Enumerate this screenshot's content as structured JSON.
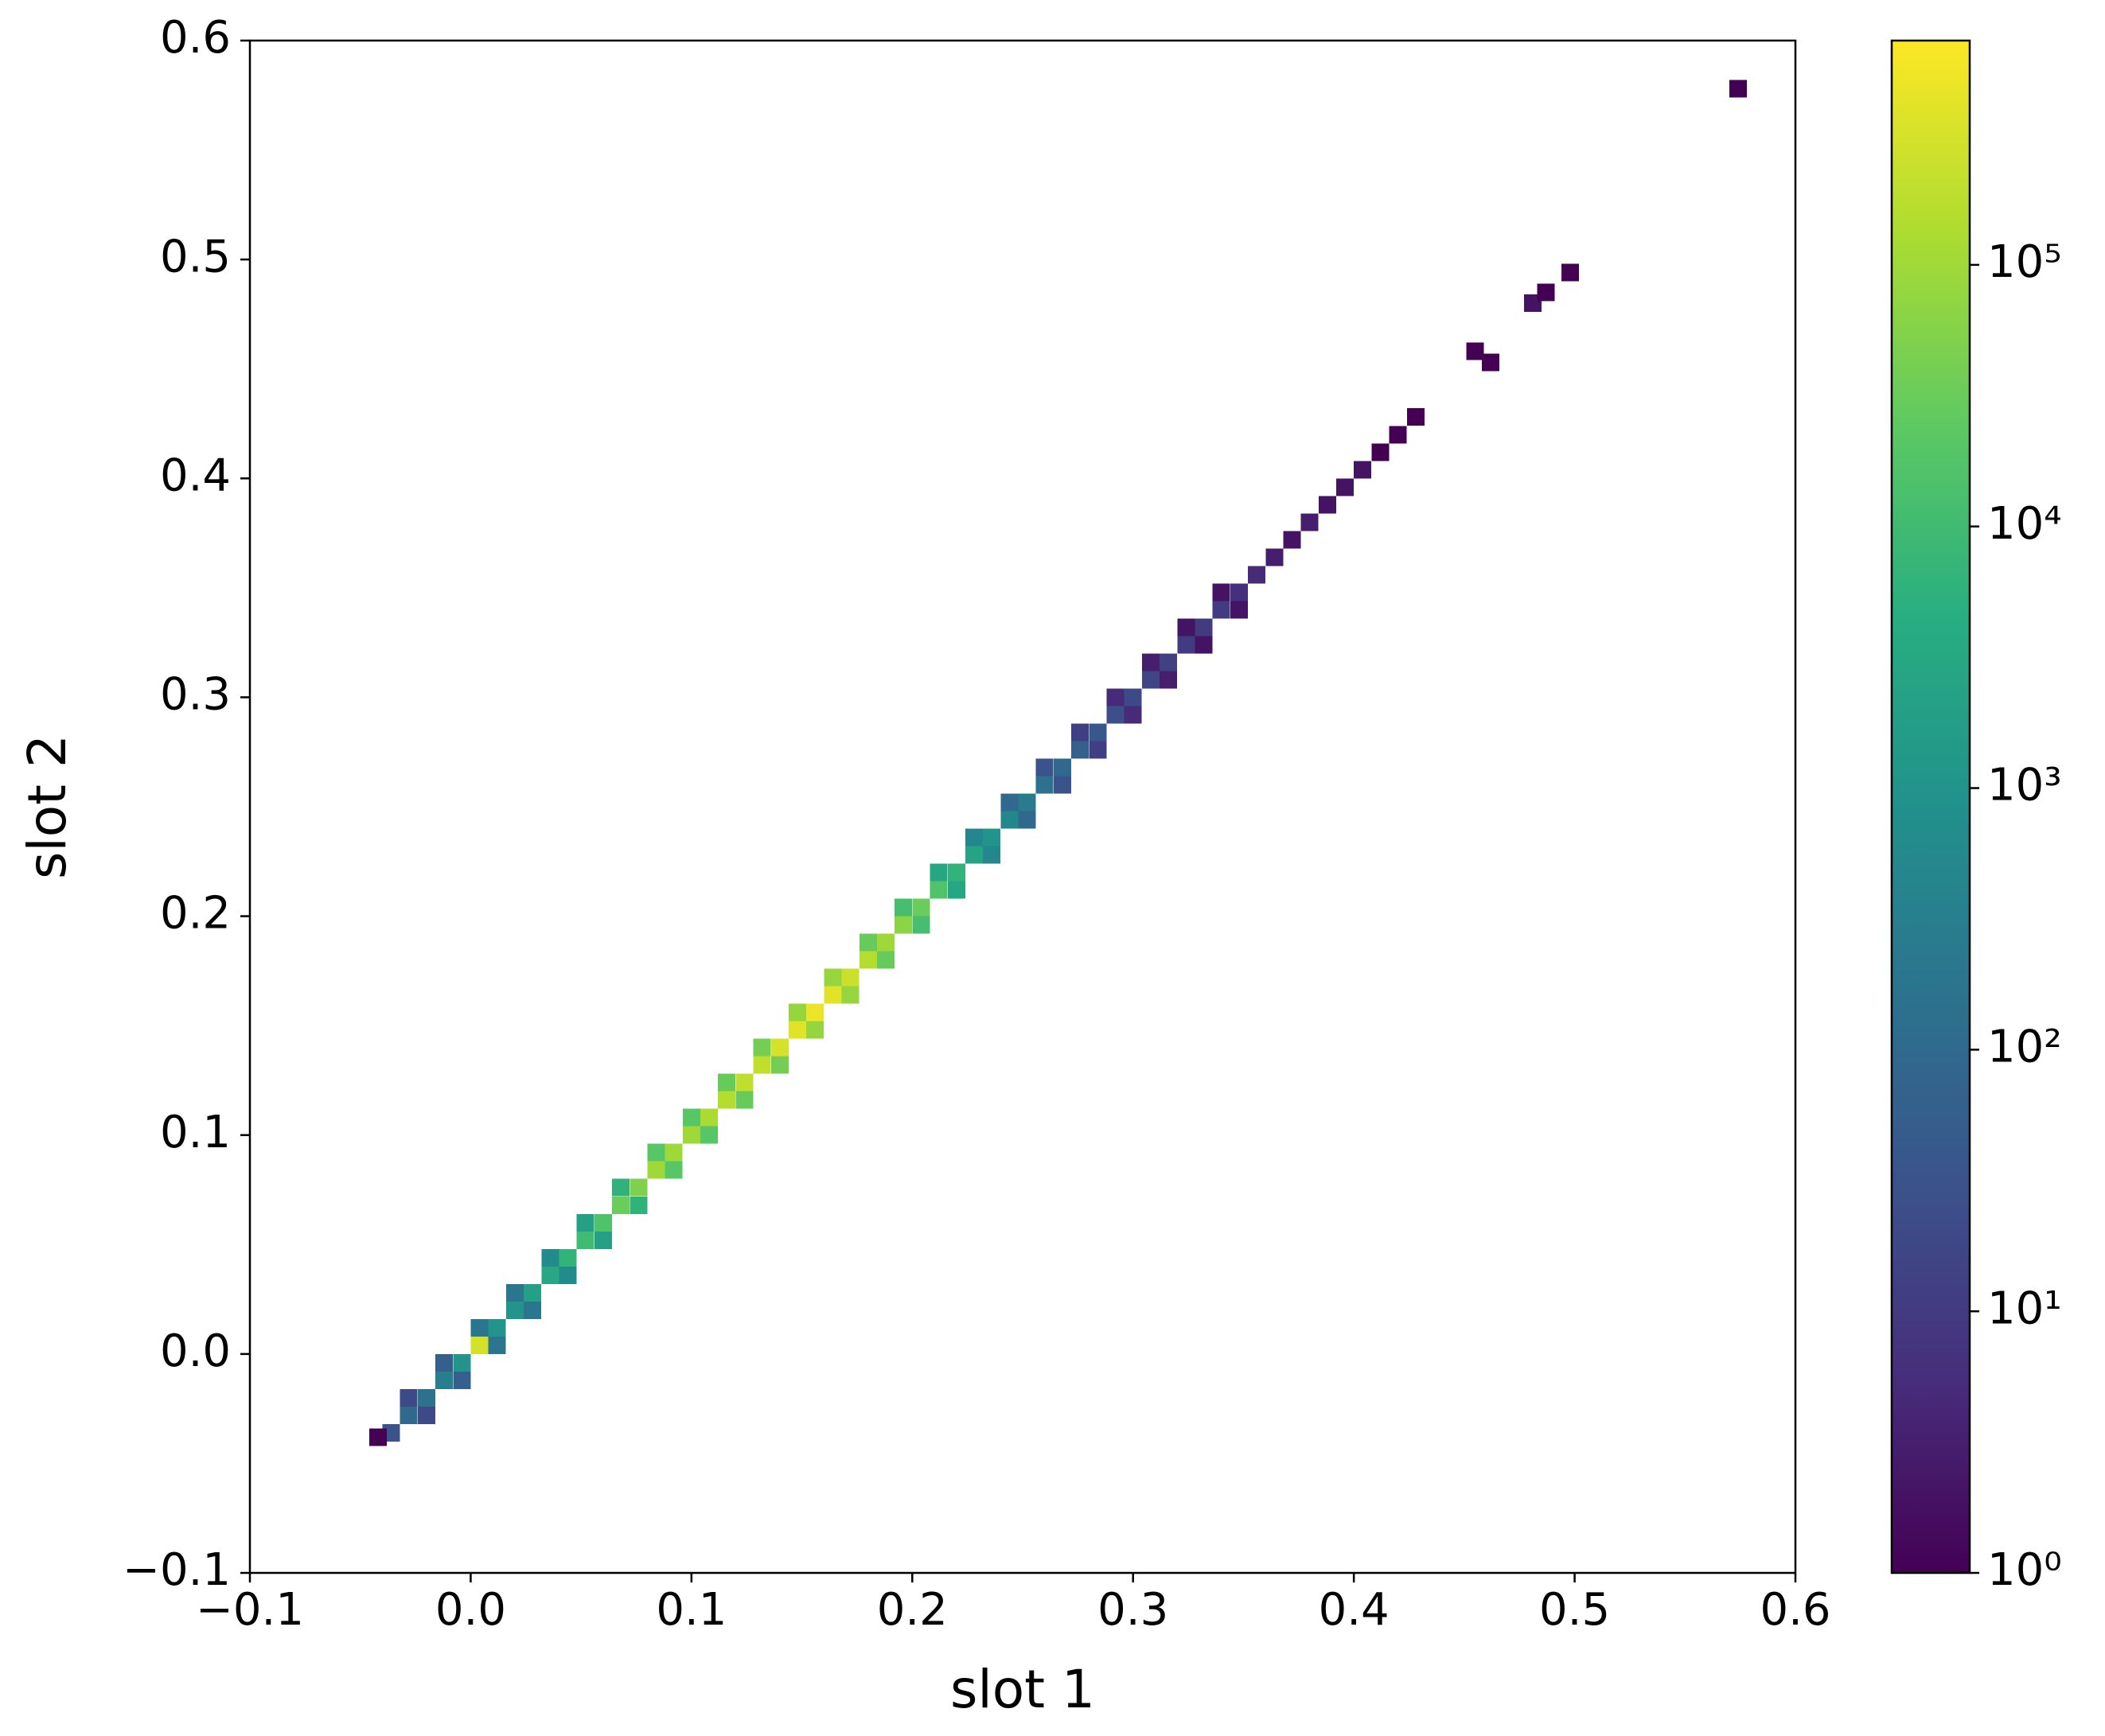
{
  "chart_data": {
    "type": "hist2d",
    "xlabel": "slot 1",
    "ylabel": "slot 2",
    "xlim": [
      -0.1,
      0.6
    ],
    "ylim": [
      -0.1,
      0.6
    ],
    "xticks": [
      {
        "value": -0.1,
        "label": "−0.1"
      },
      {
        "value": 0,
        "label": "0.0"
      },
      0.1,
      0.2,
      0.3,
      0.4,
      0.5,
      0.6
    ],
    "yticks": [
      {
        "value": -0.1,
        "label": "−0.1"
      },
      {
        "value": 0,
        "label": "0.0"
      },
      0.1,
      0.2,
      0.3,
      0.4,
      0.5,
      0.6
    ],
    "colormap": "viridis",
    "color_scale": "log",
    "clim": [
      1,
      720000
    ],
    "cticks": [
      {
        "value": 1,
        "label": "10⁰"
      },
      {
        "value": 10,
        "label": "10¹"
      },
      {
        "value": 100,
        "label": "10²"
      },
      {
        "value": 1000,
        "label": "10³"
      },
      {
        "value": 10000,
        "label": "10⁴"
      },
      {
        "value": 100000,
        "label": "10⁵"
      }
    ],
    "cells": [
      [
        -0.036,
        -0.036,
        32
      ],
      [
        -0.028,
        -0.028,
        100
      ],
      [
        -0.02,
        -0.02,
        158
      ],
      [
        -0.012,
        -0.012,
        316
      ],
      [
        -0.004,
        -0.004,
        1000
      ],
      [
        0.004,
        0.004,
        300000
      ],
      [
        0.012,
        0.012,
        1000
      ],
      [
        0.02,
        0.02,
        1000
      ],
      [
        0.028,
        0.028,
        2000
      ],
      [
        0.036,
        0.036,
        3200
      ],
      [
        0.044,
        0.044,
        6300
      ],
      [
        0.052,
        0.052,
        10000
      ],
      [
        0.06,
        0.06,
        16000
      ],
      [
        0.068,
        0.068,
        32000
      ],
      [
        0.076,
        0.076,
        50000
      ],
      [
        0.084,
        0.084,
        100000
      ],
      [
        0.092,
        0.092,
        100000
      ],
      [
        0.1,
        0.1,
        100000
      ],
      [
        0.108,
        0.108,
        126000
      ],
      [
        0.116,
        0.116,
        158000
      ],
      [
        0.124,
        0.124,
        200000
      ],
      [
        0.132,
        0.132,
        200000
      ],
      [
        0.14,
        0.14,
        316000
      ],
      [
        0.148,
        0.148,
        400000
      ],
      [
        0.156,
        0.156,
        500000
      ],
      [
        0.164,
        0.164,
        400000
      ],
      [
        0.172,
        0.172,
        250000
      ],
      [
        0.18,
        0.18,
        158000
      ],
      [
        0.188,
        0.188,
        100000
      ],
      [
        0.196,
        0.196,
        63000
      ],
      [
        0.204,
        0.204,
        32000
      ],
      [
        0.212,
        0.212,
        16000
      ],
      [
        0.22,
        0.22,
        6300
      ],
      [
        0.228,
        0.228,
        2500
      ],
      [
        0.236,
        0.236,
        1000
      ],
      [
        0.244,
        0.244,
        500
      ],
      [
        0.252,
        0.252,
        250
      ],
      [
        0.26,
        0.26,
        158
      ],
      [
        0.268,
        0.268,
        100
      ],
      [
        0.276,
        0.276,
        63
      ],
      [
        0.284,
        0.284,
        40
      ],
      [
        0.292,
        0.292,
        25
      ],
      [
        0.3,
        0.3,
        20
      ],
      [
        0.308,
        0.308,
        16
      ],
      [
        0.316,
        0.316,
        13
      ],
      [
        0.324,
        0.324,
        10
      ],
      [
        0.332,
        0.332,
        10
      ],
      [
        0.34,
        0.34,
        10
      ],
      [
        0.348,
        0.348,
        6
      ],
      [
        0.356,
        0.356,
        5
      ],
      [
        0.364,
        0.364,
        3
      ],
      [
        0.372,
        0.372,
        2
      ],
      [
        0.38,
        0.38,
        3
      ],
      [
        0.388,
        0.388,
        2
      ],
      [
        0.396,
        0.396,
        2
      ],
      [
        0.404,
        0.404,
        2
      ],
      [
        0.412,
        0.412,
        1
      ],
      [
        0.42,
        0.42,
        1
      ],
      [
        0.428,
        0.428,
        1
      ],
      [
        -0.02,
        -0.028,
        20
      ],
      [
        -0.028,
        -0.02,
        20
      ],
      [
        -0.004,
        -0.012,
        60
      ],
      [
        -0.012,
        -0.004,
        60
      ],
      [
        0.012,
        0.004,
        200
      ],
      [
        0.004,
        0.012,
        200
      ],
      [
        0.028,
        0.02,
        200
      ],
      [
        0.02,
        0.028,
        200
      ],
      [
        0.044,
        0.036,
        600
      ],
      [
        0.036,
        0.044,
        600
      ],
      [
        0.06,
        0.052,
        2000
      ],
      [
        0.052,
        0.06,
        2000
      ],
      [
        0.076,
        0.068,
        6000
      ],
      [
        0.068,
        0.076,
        6000
      ],
      [
        0.092,
        0.084,
        20000
      ],
      [
        0.084,
        0.092,
        20000
      ],
      [
        0.108,
        0.1,
        20000
      ],
      [
        0.1,
        0.108,
        20000
      ],
      [
        0.124,
        0.116,
        30000
      ],
      [
        0.116,
        0.124,
        30000
      ],
      [
        0.14,
        0.132,
        40000
      ],
      [
        0.132,
        0.14,
        40000
      ],
      [
        0.156,
        0.148,
        80000
      ],
      [
        0.148,
        0.156,
        80000
      ],
      [
        0.172,
        0.164,
        80000
      ],
      [
        0.164,
        0.172,
        80000
      ],
      [
        0.188,
        0.18,
        30000
      ],
      [
        0.18,
        0.188,
        30000
      ],
      [
        0.204,
        0.196,
        12000
      ],
      [
        0.196,
        0.204,
        12000
      ],
      [
        0.22,
        0.212,
        3000
      ],
      [
        0.212,
        0.22,
        3000
      ],
      [
        0.236,
        0.228,
        500
      ],
      [
        0.228,
        0.236,
        500
      ],
      [
        0.252,
        0.244,
        100
      ],
      [
        0.244,
        0.252,
        100
      ],
      [
        0.268,
        0.26,
        30
      ],
      [
        0.26,
        0.268,
        30
      ],
      [
        0.284,
        0.276,
        12
      ],
      [
        0.276,
        0.284,
        12
      ],
      [
        0.3,
        0.292,
        5
      ],
      [
        0.292,
        0.3,
        5
      ],
      [
        0.316,
        0.308,
        3
      ],
      [
        0.308,
        0.316,
        3
      ],
      [
        0.332,
        0.324,
        2
      ],
      [
        0.324,
        0.332,
        2
      ],
      [
        0.348,
        0.34,
        2
      ],
      [
        0.34,
        0.348,
        2
      ],
      [
        0.455,
        0.458,
        1
      ],
      [
        0.462,
        0.453,
        1
      ],
      [
        0.481,
        0.48,
        2
      ],
      [
        0.487,
        0.485,
        1
      ],
      [
        0.498,
        0.494,
        1
      ],
      [
        0.574,
        0.578,
        1
      ],
      [
        -0.042,
        -0.038,
        1
      ]
    ]
  }
}
